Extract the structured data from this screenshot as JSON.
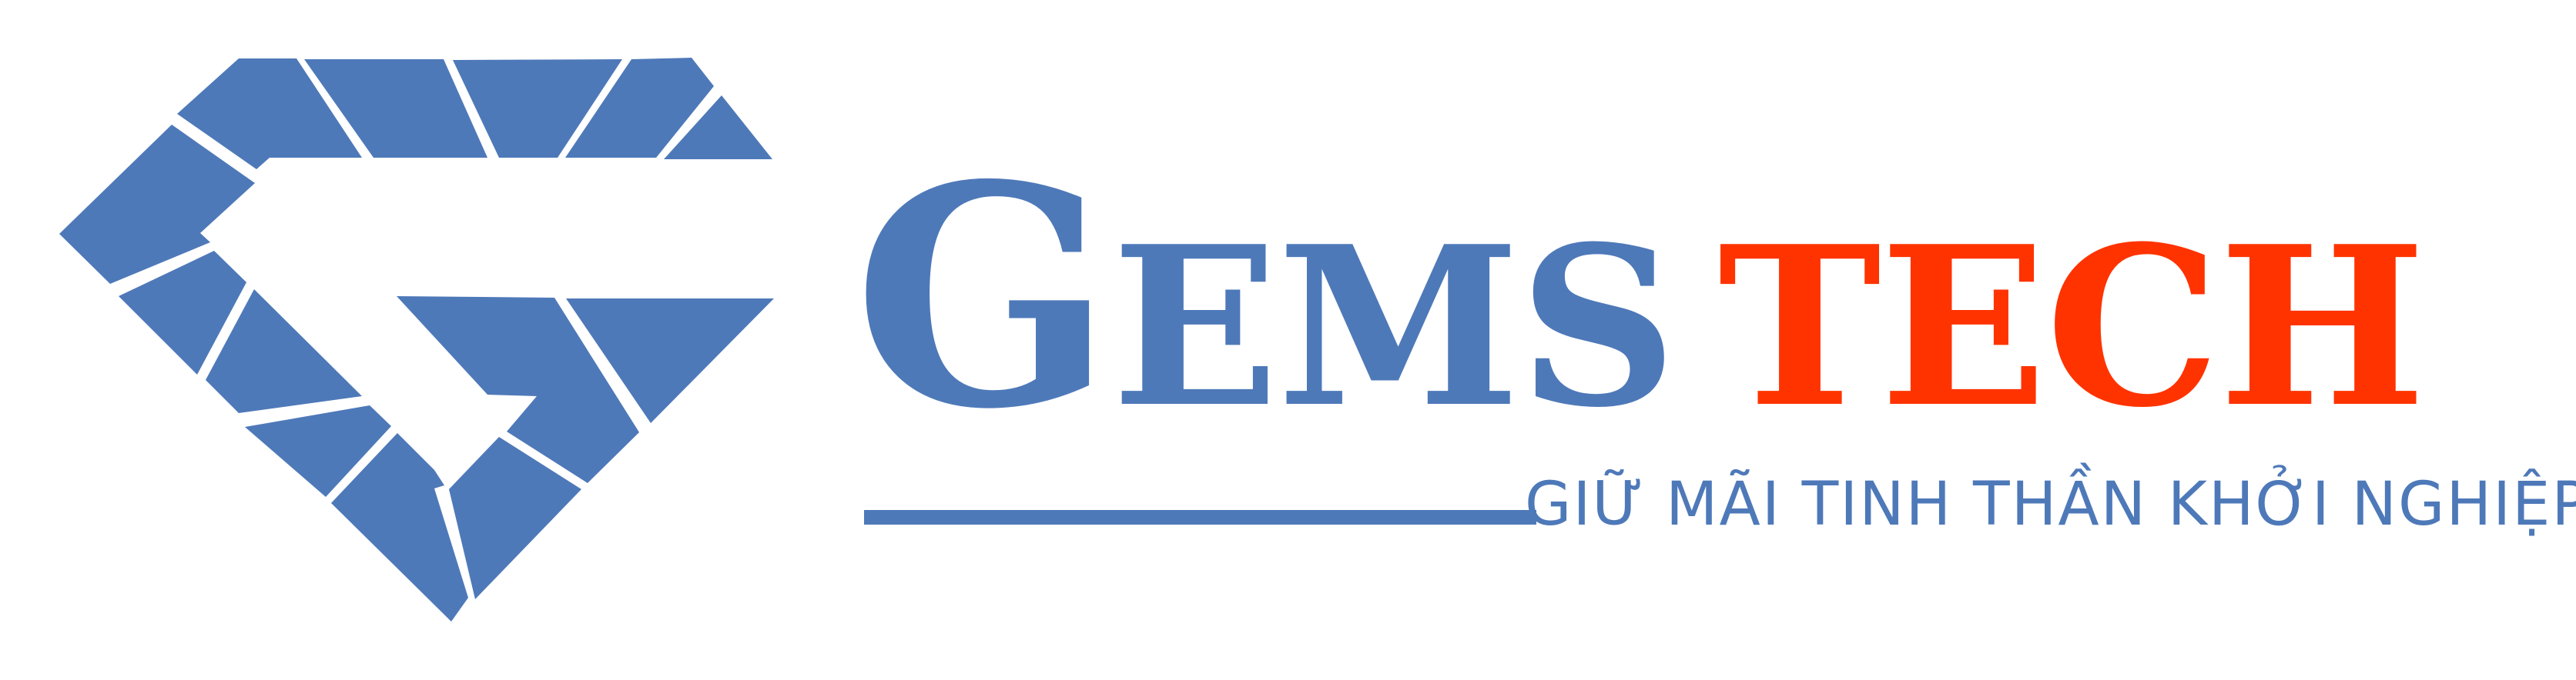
{
  "brand": {
    "word1_initial": "G",
    "word1_rest": "EMS",
    "word2": "TECH",
    "word1_color": "#4E79B9",
    "word2_color": "#FF3300"
  },
  "tagline": {
    "text": "GIỮ MÃI TINH THẦN KHỞI NGHIỆP",
    "color": "#4E79B9"
  },
  "logo": {
    "icon": "diamond-g-icon",
    "color": "#4E79B9"
  },
  "divider": {
    "color": "#4E79B9"
  }
}
